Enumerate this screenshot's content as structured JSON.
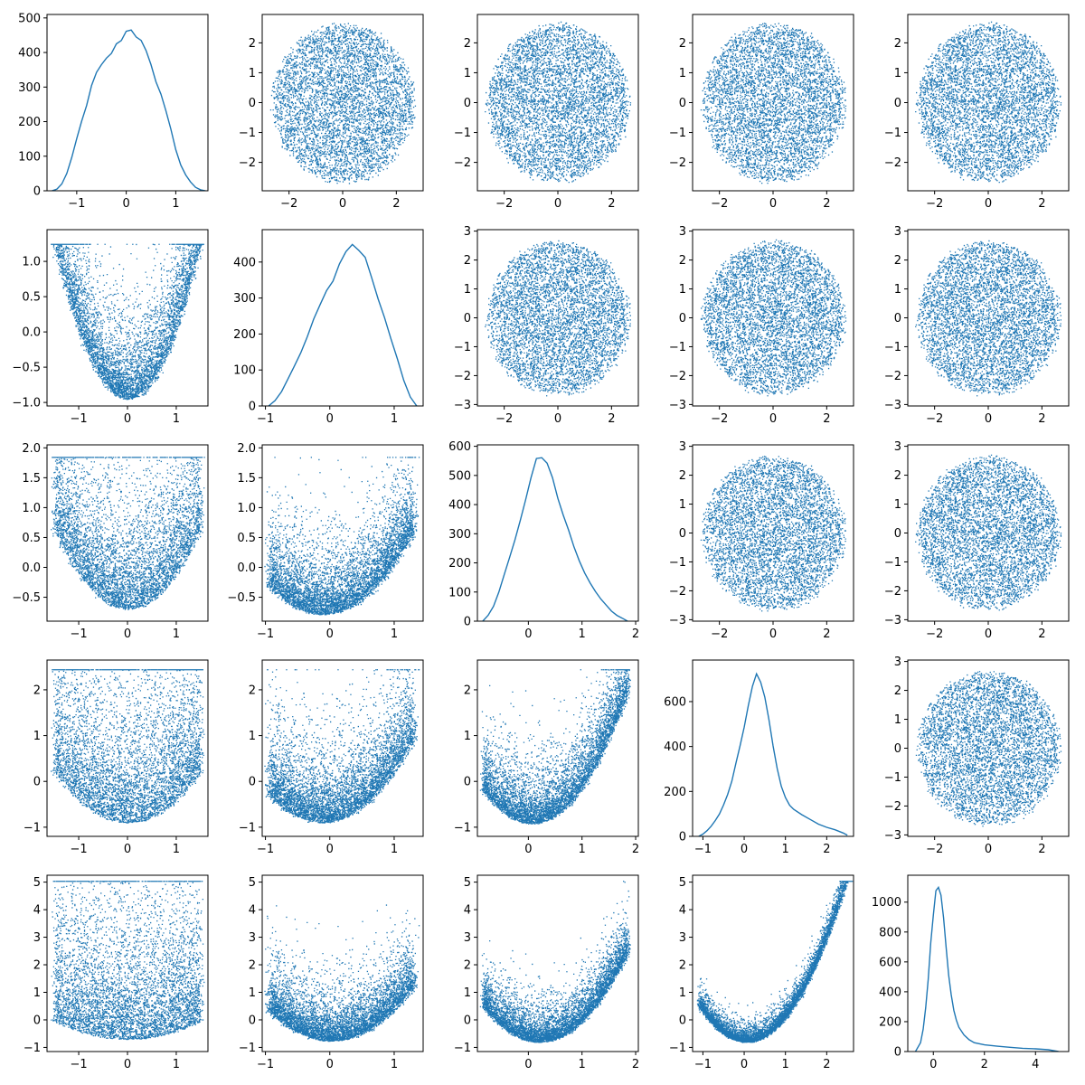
{
  "figure": {
    "style": {
      "line_color": "#1f77b4",
      "axis_color": "#000000",
      "background": "#ffffff"
    }
  },
  "chart_data": [
    {
      "row": 0,
      "col": 0,
      "type": "line",
      "variable": 1,
      "x_ticks": [
        -1,
        0,
        1
      ],
      "y_ticks": [
        0,
        100,
        200,
        300,
        400,
        500
      ],
      "xlim": [
        -1.6,
        1.65
      ],
      "ylim": [
        0,
        510
      ],
      "x": [
        -1.5,
        -1.4,
        -1.3,
        -1.2,
        -1.1,
        -1.0,
        -0.9,
        -0.8,
        -0.7,
        -0.6,
        -0.5,
        -0.4,
        -0.3,
        -0.2,
        -0.1,
        0.0,
        0.1,
        0.2,
        0.3,
        0.4,
        0.5,
        0.6,
        0.7,
        0.8,
        0.9,
        1.0,
        1.1,
        1.2,
        1.3,
        1.4,
        1.5,
        1.6
      ],
      "y": [
        0,
        5,
        20,
        50,
        95,
        150,
        200,
        250,
        300,
        340,
        360,
        380,
        400,
        420,
        440,
        460,
        470,
        450,
        430,
        400,
        360,
        320,
        280,
        230,
        180,
        120,
        75,
        45,
        25,
        10,
        3,
        0
      ]
    },
    {
      "row": 0,
      "col": 1,
      "type": "scatter",
      "shape": "disk",
      "params": {
        "r": 2.75
      },
      "x_ticks": [
        -2,
        0,
        2
      ],
      "y_ticks": [
        -2,
        -1,
        0,
        1,
        2
      ],
      "xlim": [
        -3,
        3
      ],
      "ylim": [
        -2.95,
        2.95
      ]
    },
    {
      "row": 0,
      "col": 2,
      "type": "scatter",
      "shape": "disk",
      "params": {
        "r": 2.75
      },
      "x_ticks": [
        -2,
        0,
        2
      ],
      "y_ticks": [
        -2,
        -1,
        0,
        1,
        2
      ],
      "xlim": [
        -3,
        3
      ],
      "ylim": [
        -2.95,
        2.95
      ]
    },
    {
      "row": 0,
      "col": 3,
      "type": "scatter",
      "shape": "disk",
      "params": {
        "r": 2.75
      },
      "x_ticks": [
        -2,
        0,
        2
      ],
      "y_ticks": [
        -2,
        -1,
        0,
        1,
        2
      ],
      "xlim": [
        -3,
        3
      ],
      "ylim": [
        -2.95,
        2.95
      ]
    },
    {
      "row": 0,
      "col": 4,
      "type": "scatter",
      "shape": "disk",
      "params": {
        "r": 2.75
      },
      "x_ticks": [
        -2,
        0,
        2
      ],
      "y_ticks": [
        -2,
        -1,
        0,
        1,
        2
      ],
      "xlim": [
        -3,
        3
      ],
      "ylim": [
        -2.95,
        2.95
      ]
    },
    {
      "row": 1,
      "col": 0,
      "type": "scatter",
      "shape": "parabola_x",
      "params": {
        "a": 1.0,
        "c": -0.95,
        "tmin": -1.5,
        "tmax": 1.5,
        "xw": 0.04,
        "yw": 1.1
      },
      "x_ticks": [
        -1,
        0,
        1
      ],
      "y_ticks": [
        -1.0,
        -0.5,
        0.0,
        0.5,
        1.0
      ],
      "xlim": [
        -1.65,
        1.65
      ],
      "ylim": [
        -1.05,
        1.45
      ]
    },
    {
      "row": 1,
      "col": 1,
      "type": "line",
      "variable": 2,
      "x_ticks": [
        -1,
        0,
        1
      ],
      "y_ticks": [
        0,
        100,
        200,
        300,
        400
      ],
      "xlim": [
        -1.05,
        1.45
      ],
      "ylim": [
        0,
        490
      ],
      "x": [
        -0.95,
        -0.85,
        -0.75,
        -0.65,
        -0.55,
        -0.45,
        -0.35,
        -0.25,
        -0.15,
        -0.05,
        0.05,
        0.15,
        0.25,
        0.35,
        0.45,
        0.55,
        0.65,
        0.75,
        0.85,
        0.95,
        1.05,
        1.15,
        1.25,
        1.35
      ],
      "y": [
        0,
        15,
        40,
        75,
        110,
        150,
        195,
        240,
        285,
        320,
        350,
        390,
        430,
        455,
        440,
        410,
        360,
        300,
        250,
        190,
        130,
        70,
        25,
        0
      ]
    },
    {
      "row": 1,
      "col": 2,
      "type": "scatter",
      "shape": "disk",
      "params": {
        "r": 2.75
      },
      "x_ticks": [
        -2,
        0,
        2
      ],
      "y_ticks": [
        -3,
        -2,
        -1,
        0,
        1,
        2,
        3
      ],
      "xlim": [
        -3,
        3
      ],
      "ylim": [
        -3.05,
        3.05
      ]
    },
    {
      "row": 1,
      "col": 3,
      "type": "scatter",
      "shape": "disk",
      "params": {
        "r": 2.75
      },
      "x_ticks": [
        -2,
        0,
        2
      ],
      "y_ticks": [
        -3,
        -2,
        -1,
        0,
        1,
        2,
        3
      ],
      "xlim": [
        -3,
        3
      ],
      "ylim": [
        -3.05,
        3.05
      ]
    },
    {
      "row": 1,
      "col": 4,
      "type": "scatter",
      "shape": "disk",
      "params": {
        "r": 2.75
      },
      "x_ticks": [
        -2,
        0,
        2
      ],
      "y_ticks": [
        -3,
        -2,
        -1,
        0,
        1,
        2,
        3
      ],
      "xlim": [
        -3,
        3
      ],
      "ylim": [
        -3.05,
        3.05
      ]
    },
    {
      "row": 2,
      "col": 0,
      "type": "scatter",
      "shape": "parabola_x",
      "params": {
        "a": 0.6,
        "c": -0.7,
        "tmin": -1.5,
        "tmax": 1.5,
        "xw": 0.04,
        "yw": 2.2
      },
      "x_ticks": [
        -1,
        0,
        1
      ],
      "y_ticks": [
        -0.5,
        0.0,
        0.5,
        1.0,
        1.5,
        2.0
      ],
      "xlim": [
        -1.65,
        1.65
      ],
      "ylim": [
        -0.9,
        2.05
      ]
    },
    {
      "row": 2,
      "col": 1,
      "type": "scatter",
      "shape": "parabola_x",
      "params": {
        "a": 0.7,
        "c": -0.75,
        "shift": 0.1,
        "slope": 0.3,
        "tmin": -0.95,
        "tmax": 1.3,
        "xw": 0.04,
        "yw": 1.1
      },
      "x_ticks": [
        -1,
        0,
        1
      ],
      "y_ticks": [
        -0.5,
        0.0,
        0.5,
        1.0,
        1.5,
        2.0
      ],
      "xlim": [
        -1.05,
        1.45
      ],
      "ylim": [
        -0.9,
        2.05
      ]
    },
    {
      "row": 2,
      "col": 2,
      "type": "line",
      "variable": 3,
      "x_ticks": [
        0,
        1,
        2
      ],
      "y_ticks": [
        0,
        100,
        200,
        300,
        400,
        500,
        600
      ],
      "xlim": [
        -0.95,
        2.05
      ],
      "ylim": [
        0,
        605
      ],
      "x": [
        -0.85,
        -0.75,
        -0.65,
        -0.55,
        -0.45,
        -0.35,
        -0.25,
        -0.15,
        -0.05,
        0.05,
        0.15,
        0.25,
        0.35,
        0.45,
        0.55,
        0.65,
        0.75,
        0.85,
        0.95,
        1.05,
        1.15,
        1.25,
        1.35,
        1.45,
        1.55,
        1.65,
        1.75,
        1.85
      ],
      "y": [
        0,
        20,
        50,
        100,
        160,
        220,
        280,
        350,
        420,
        490,
        550,
        570,
        540,
        490,
        430,
        370,
        310,
        260,
        210,
        165,
        130,
        100,
        75,
        55,
        35,
        20,
        10,
        0
      ]
    },
    {
      "row": 2,
      "col": 3,
      "type": "scatter",
      "shape": "disk",
      "params": {
        "r": 2.75
      },
      "x_ticks": [
        -2,
        0,
        2
      ],
      "y_ticks": [
        -3,
        -2,
        -1,
        0,
        1,
        2,
        3
      ],
      "xlim": [
        -3,
        3
      ],
      "ylim": [
        -3.05,
        3.05
      ]
    },
    {
      "row": 2,
      "col": 4,
      "type": "scatter",
      "shape": "disk",
      "params": {
        "r": 2.75
      },
      "x_ticks": [
        -2,
        0,
        2
      ],
      "y_ticks": [
        -3,
        -2,
        -1,
        0,
        1,
        2,
        3
      ],
      "xlim": [
        -3,
        3
      ],
      "ylim": [
        -3.05,
        3.05
      ]
    },
    {
      "row": 3,
      "col": 0,
      "type": "scatter",
      "shape": "parabola_x",
      "params": {
        "a": 0.5,
        "c": -0.9,
        "tmin": -1.5,
        "tmax": 1.5,
        "xw": 0.04,
        "yw": 3.3
      },
      "x_ticks": [
        -1,
        0,
        1
      ],
      "y_ticks": [
        -1,
        0,
        1,
        2
      ],
      "xlim": [
        -1.65,
        1.65
      ],
      "ylim": [
        -1.2,
        2.65
      ]
    },
    {
      "row": 3,
      "col": 1,
      "type": "scatter",
      "shape": "parabola_x",
      "params": {
        "a": 0.9,
        "c": -0.85,
        "shift": 0.1,
        "slope": 0.4,
        "tmin": -0.95,
        "tmax": 1.3,
        "xw": 0.04,
        "yw": 1.6
      },
      "x_ticks": [
        -1,
        0,
        1
      ],
      "y_ticks": [
        -1,
        0,
        1,
        2
      ],
      "xlim": [
        -1.05,
        1.45
      ],
      "ylim": [
        -1.2,
        2.65
      ]
    },
    {
      "row": 3,
      "col": 2,
      "type": "scatter",
      "shape": "parabola_x",
      "params": {
        "a": 0.9,
        "c": -0.9,
        "shift": 0.2,
        "slope": 0.25,
        "tmin": -0.85,
        "tmax": 1.85,
        "xw": 0.03,
        "yw": 1.2
      },
      "x_ticks": [
        0,
        1,
        2
      ],
      "y_ticks": [
        -1,
        0,
        1,
        2
      ],
      "xlim": [
        -0.95,
        2.05
      ],
      "ylim": [
        -1.2,
        2.65
      ]
    },
    {
      "row": 3,
      "col": 3,
      "type": "line",
      "variable": 4,
      "x_ticks": [
        -1,
        0,
        1,
        2
      ],
      "y_ticks": [
        0,
        200,
        400,
        600
      ],
      "xlim": [
        -1.25,
        2.65
      ],
      "ylim": [
        0,
        785
      ],
      "x": [
        -1.1,
        -1.0,
        -0.9,
        -0.8,
        -0.7,
        -0.6,
        -0.5,
        -0.4,
        -0.3,
        -0.2,
        -0.1,
        0.0,
        0.1,
        0.2,
        0.3,
        0.4,
        0.5,
        0.6,
        0.7,
        0.8,
        0.9,
        1.0,
        1.1,
        1.2,
        1.4,
        1.6,
        1.8,
        2.0,
        2.2,
        2.4,
        2.5
      ],
      "y": [
        0,
        10,
        25,
        45,
        70,
        100,
        140,
        190,
        250,
        320,
        400,
        490,
        580,
        660,
        720,
        700,
        620,
        520,
        400,
        300,
        220,
        170,
        140,
        120,
        95,
        75,
        55,
        40,
        30,
        15,
        5
      ]
    },
    {
      "row": 3,
      "col": 4,
      "type": "scatter",
      "shape": "disk",
      "params": {
        "r": 2.75
      },
      "x_ticks": [
        -2,
        0,
        2
      ],
      "y_ticks": [
        -3,
        -2,
        -1,
        0,
        1,
        2,
        3
      ],
      "xlim": [
        -3,
        3
      ],
      "ylim": [
        -3.05,
        3.05
      ]
    },
    {
      "row": 4,
      "col": 0,
      "type": "scatter",
      "shape": "parabola_x",
      "params": {
        "a": 0.3,
        "c": -0.7,
        "tmin": -1.5,
        "tmax": 1.5,
        "xw": 0.04,
        "yw": 5.6
      },
      "x_ticks": [
        -1,
        0,
        1
      ],
      "y_ticks": [
        -1,
        0,
        1,
        2,
        3,
        4,
        5
      ],
      "xlim": [
        -1.65,
        1.65
      ],
      "ylim": [
        -1.15,
        5.25
      ]
    },
    {
      "row": 4,
      "col": 1,
      "type": "scatter",
      "shape": "parabola_x",
      "params": {
        "a": 1.2,
        "c": -0.75,
        "shift": 0.1,
        "slope": 0.2,
        "tmin": -0.95,
        "tmax": 1.3,
        "xw": 0.04,
        "yw": 1.8
      },
      "x_ticks": [
        -1,
        0,
        1
      ],
      "y_ticks": [
        -1,
        0,
        1,
        2,
        3,
        4,
        5
      ],
      "xlim": [
        -1.05,
        1.45
      ],
      "ylim": [
        -1.15,
        5.25
      ]
    },
    {
      "row": 4,
      "col": 2,
      "type": "scatter",
      "shape": "parabola_x",
      "params": {
        "a": 1.2,
        "c": -0.8,
        "shift": 0.2,
        "slope": 0.0,
        "tmin": -0.85,
        "tmax": 1.85,
        "xw": 0.03,
        "yw": 1.3
      },
      "x_ticks": [
        0,
        1,
        2
      ],
      "y_ticks": [
        -1,
        0,
        1,
        2,
        3,
        4,
        5
      ],
      "xlim": [
        -0.95,
        2.05
      ],
      "ylim": [
        -1.15,
        5.25
      ]
    },
    {
      "row": 4,
      "col": 3,
      "type": "scatter",
      "shape": "parabola_x",
      "params": {
        "a": 1.0,
        "c": -0.8,
        "shift": 0.05,
        "slope": 0.0,
        "tmin": -1.1,
        "tmax": 2.55,
        "xw": 0.03,
        "yw": 0.6
      },
      "x_ticks": [
        -1,
        0,
        1,
        2
      ],
      "y_ticks": [
        -1,
        0,
        1,
        2,
        3,
        4,
        5
      ],
      "xlim": [
        -1.25,
        2.65
      ],
      "ylim": [
        -1.15,
        5.25
      ]
    },
    {
      "row": 4,
      "col": 4,
      "type": "line",
      "variable": 5,
      "x_ticks": [
        0,
        2,
        4
      ],
      "y_ticks": [
        0,
        200,
        400,
        600,
        800,
        1000
      ],
      "xlim": [
        -1.0,
        5.3
      ],
      "ylim": [
        0,
        1180
      ],
      "x": [
        -0.7,
        -0.5,
        -0.4,
        -0.3,
        -0.2,
        -0.1,
        0.0,
        0.1,
        0.2,
        0.3,
        0.4,
        0.5,
        0.6,
        0.7,
        0.8,
        0.9,
        1.0,
        1.2,
        1.4,
        1.6,
        2.0,
        2.5,
        3.0,
        3.5,
        4.0,
        4.5,
        4.9
      ],
      "y": [
        0,
        60,
        150,
        290,
        480,
        720,
        930,
        1060,
        1100,
        1050,
        900,
        700,
        520,
        380,
        280,
        210,
        160,
        110,
        80,
        60,
        45,
        35,
        28,
        22,
        18,
        12,
        0
      ]
    }
  ]
}
